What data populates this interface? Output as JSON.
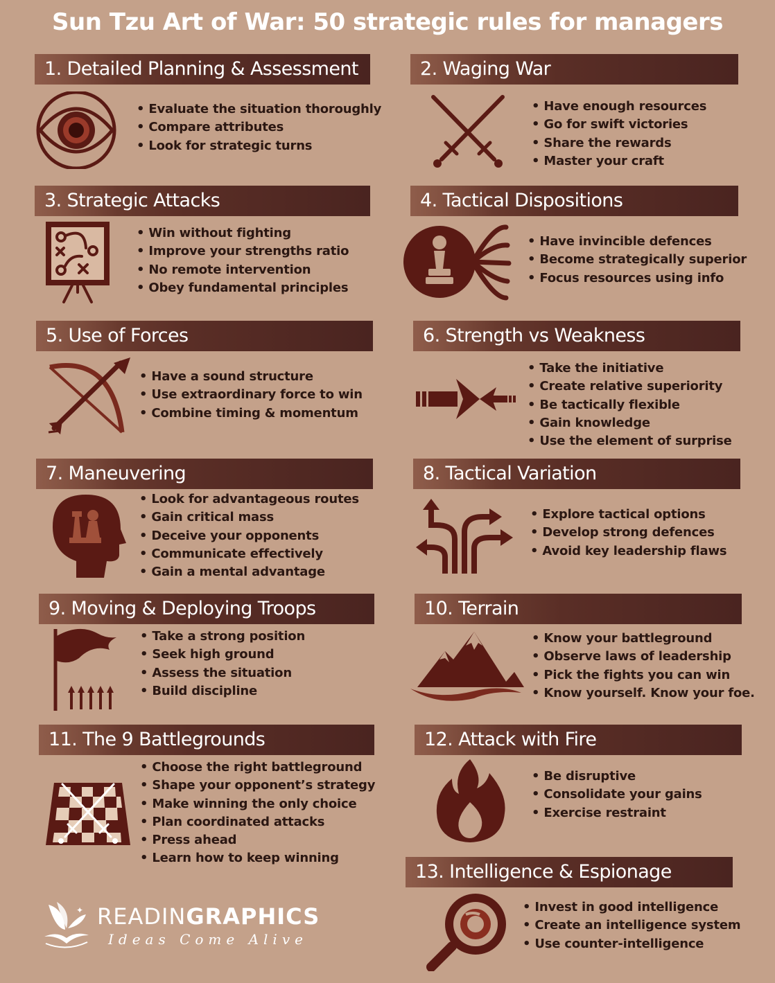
{
  "title": "Sun Tzu Art of War: 50 strategic rules for managers",
  "colors": {
    "background": "#c4a18a",
    "banner": "#5a2e26",
    "icon": "#5a1a14",
    "text": "#2b1712"
  },
  "sections": [
    {
      "heading": "1. Detailed Planning & Assessment",
      "icon": "eye-icon",
      "points": [
        "Evaluate the situation thoroughly",
        "Compare attributes",
        "Look for strategic turns"
      ]
    },
    {
      "heading": "2. Waging War",
      "icon": "crossed-swords-icon",
      "points": [
        "Have enough resources",
        "Go for swift victories",
        "Share the rewards",
        "Master your craft"
      ]
    },
    {
      "heading": "3. Strategic Attacks",
      "icon": "strategy-board-icon",
      "points": [
        "Win without fighting",
        "Improve your strengths ratio",
        "No remote intervention",
        "Obey fundamental principles"
      ]
    },
    {
      "heading": "4. Tactical Dispositions",
      "icon": "chess-pawn-arrows-icon",
      "points": [
        "Have invincible defences",
        "Become strategically superior",
        "Focus resources using info"
      ]
    },
    {
      "heading": "5. Use of Forces",
      "icon": "bow-and-arrow-icon",
      "points": [
        "Have a sound structure",
        "Use extraordinary force to win",
        "Combine timing & momentum"
      ]
    },
    {
      "heading": "6. Strength vs Weakness",
      "icon": "opposing-arrows-icon",
      "points": [
        "Take the initiative",
        "Create relative superiority",
        "Be tactically flexible",
        "Gain knowledge",
        "Use the element of surprise"
      ]
    },
    {
      "heading": "7. Maneuvering",
      "icon": "head-chess-icon",
      "points": [
        "Look for advantageous routes",
        "Gain critical mass",
        "Deceive your opponents",
        "Communicate effectively",
        "Gain a mental advantage"
      ]
    },
    {
      "heading": "8. Tactical Variation",
      "icon": "diverging-arrows-icon",
      "points": [
        "Explore tactical options",
        "Develop strong defences",
        "Avoid key leadership flaws"
      ]
    },
    {
      "heading": "9. Moving & Deploying Troops",
      "icon": "flag-troops-icon",
      "points": [
        "Take a strong position",
        "Seek high ground",
        "Assess the situation",
        "Build discipline"
      ]
    },
    {
      "heading": "10. Terrain",
      "icon": "mountains-icon",
      "points": [
        "Know your battleground",
        "Observe laws of leadership",
        "Pick the fights you can win",
        "Know yourself. Know your foe."
      ]
    },
    {
      "heading": "11. The 9 Battlegrounds",
      "icon": "chessboard-swords-icon",
      "points": [
        "Choose the right battleground",
        "Shape your opponent’s strategy",
        "Make winning the only choice",
        "Plan coordinated attacks",
        "Press ahead",
        "Learn how to keep winning"
      ]
    },
    {
      "heading": "12. Attack with Fire",
      "icon": "flame-icon",
      "points": [
        "Be disruptive",
        "Consolidate your gains",
        "Exercise restraint"
      ]
    },
    {
      "heading": "13. Intelligence & Espionage",
      "icon": "magnifier-eye-icon",
      "points": [
        "Invest in good intelligence",
        "Create an intelligence system",
        "Use counter-intelligence"
      ]
    }
  ],
  "footer": {
    "brand_light": "READIN",
    "brand_bold": "GRAPHICS",
    "tagline": "Ideas Come Alive",
    "logo_icon": "book-butterfly-logo-icon"
  }
}
